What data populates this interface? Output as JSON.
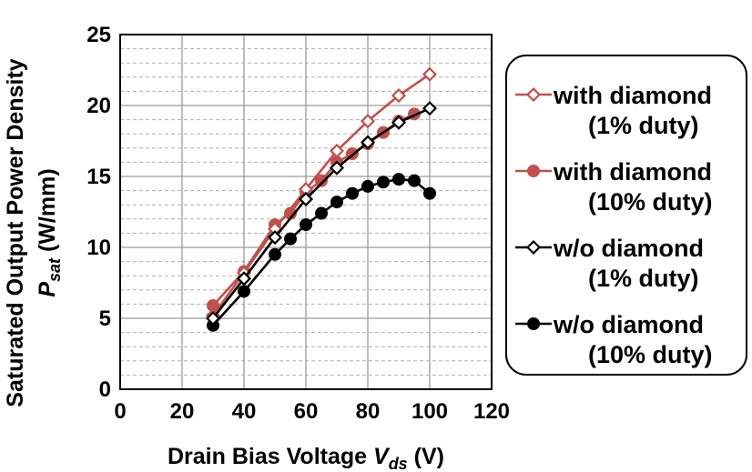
{
  "chart_data": {
    "type": "line",
    "title": "",
    "xlabel_prefix": "Drain Bias Voltage ",
    "xlabel_var": "V",
    "xlabel_sub": "ds",
    "xlabel_unit": " (V)",
    "ylabel_line1": "Saturated Output Power Density",
    "ylabel_var": "P",
    "ylabel_sub": "sat",
    "ylabel_unit": " (W/mm)",
    "xlim": [
      0,
      120
    ],
    "ylim": [
      0,
      25
    ],
    "xticks": [
      0,
      20,
      40,
      60,
      80,
      100,
      120
    ],
    "yticks": [
      0,
      5,
      10,
      15,
      20,
      25
    ],
    "grid": true,
    "legend_position": "right",
    "series": [
      {
        "name_line1": "with diamond",
        "name_line2": "(1% duty)",
        "color": "#c0504d",
        "marker": "diamond-open",
        "x": [
          30,
          40,
          50,
          60,
          70,
          80,
          90,
          100
        ],
        "y": [
          5.2,
          8.2,
          11.3,
          14.1,
          16.8,
          18.9,
          20.7,
          22.2
        ]
      },
      {
        "name_line1": "with diamond",
        "name_line2": "(10% duty)",
        "color": "#c0504d",
        "marker": "circle-filled",
        "x": [
          30,
          40,
          50,
          55,
          60,
          65,
          70,
          75,
          80,
          85,
          90,
          95
        ],
        "y": [
          5.9,
          8.3,
          11.6,
          12.4,
          13.9,
          14.7,
          16.0,
          16.6,
          17.3,
          18.1,
          18.9,
          19.4
        ]
      },
      {
        "name_line1": "w/o diamond",
        "name_line2": "(1% duty)",
        "color": "#000000",
        "marker": "diamond-open",
        "x": [
          30,
          40,
          50,
          60,
          70,
          80,
          90,
          100
        ],
        "y": [
          5.0,
          7.8,
          10.7,
          13.4,
          15.6,
          17.4,
          18.8,
          19.8
        ]
      },
      {
        "name_line1": "w/o diamond",
        "name_line2": "(10% duty)",
        "color": "#000000",
        "marker": "circle-filled",
        "x": [
          30,
          40,
          50,
          55,
          60,
          65,
          70,
          75,
          80,
          85,
          90,
          95,
          100
        ],
        "y": [
          4.5,
          6.9,
          9.5,
          10.6,
          11.6,
          12.4,
          13.2,
          13.8,
          14.3,
          14.6,
          14.8,
          14.7,
          13.8
        ]
      }
    ]
  }
}
